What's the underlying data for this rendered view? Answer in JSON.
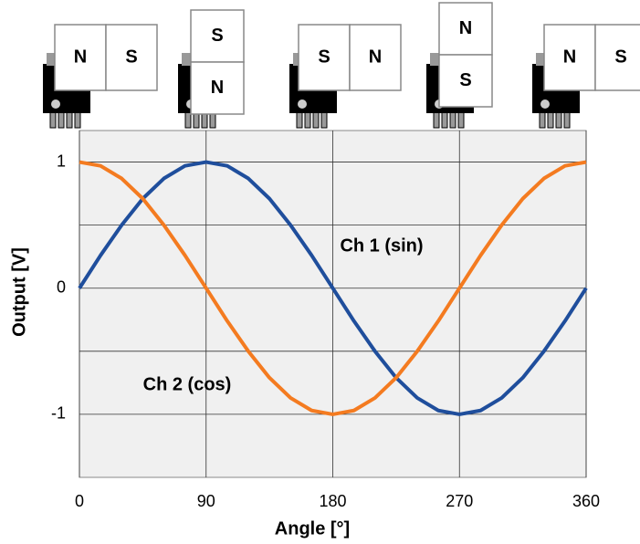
{
  "chart_data": {
    "type": "line",
    "x_label": "Angle [°]",
    "y_label": "Output [V]",
    "x": [
      0,
      15,
      30,
      45,
      60,
      75,
      90,
      105,
      120,
      135,
      150,
      165,
      180,
      195,
      210,
      225,
      240,
      255,
      270,
      285,
      300,
      315,
      330,
      345,
      360
    ],
    "series": [
      {
        "name": "Ch 1 (sin)",
        "color": "#1f4e9c",
        "values": [
          0,
          0.26,
          0.5,
          0.71,
          0.87,
          0.97,
          1,
          0.97,
          0.87,
          0.71,
          0.5,
          0.26,
          0,
          -0.26,
          -0.5,
          -0.71,
          -0.87,
          -0.97,
          -1,
          -0.97,
          -0.87,
          -0.71,
          -0.5,
          -0.26,
          0
        ]
      },
      {
        "name": "Ch 2 (cos)",
        "color": "#f47b20",
        "values": [
          1,
          0.97,
          0.87,
          0.71,
          0.5,
          0.26,
          0,
          -0.26,
          -0.5,
          -0.71,
          -0.87,
          -0.97,
          -1,
          -0.97,
          -0.87,
          -0.71,
          -0.5,
          -0.26,
          0,
          0.26,
          0.5,
          0.71,
          0.87,
          0.97,
          1
        ]
      }
    ],
    "xlim": [
      0,
      360
    ],
    "xticks": [
      0,
      90,
      180,
      270,
      360
    ],
    "ylim": [
      -1.5,
      1.25
    ],
    "yticks": [
      -1,
      0,
      1
    ],
    "y_minor_grid": [
      -0.5,
      0.5
    ],
    "grid": true,
    "plot_background": "#f0f0f0"
  },
  "sensor_diagram": {
    "pole_colors": {
      "N": "#f47b20",
      "S": "#1f4e9c"
    },
    "magnets": [
      {
        "orientation": "horizontal",
        "poles": [
          "N",
          "S"
        ]
      },
      {
        "orientation": "vertical",
        "poles": [
          "S",
          "N"
        ]
      },
      {
        "orientation": "horizontal",
        "poles": [
          "S",
          "N"
        ]
      },
      {
        "orientation": "vertical",
        "poles": [
          "N",
          "S"
        ]
      },
      {
        "orientation": "horizontal",
        "poles": [
          "N",
          "S"
        ]
      }
    ]
  }
}
